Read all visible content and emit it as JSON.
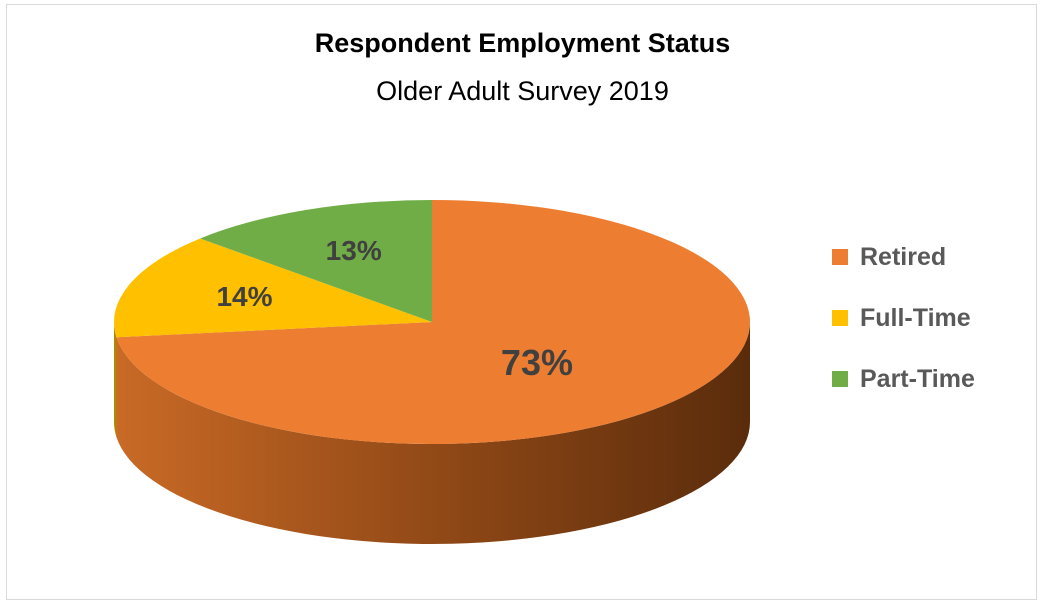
{
  "chart_data": {
    "type": "pie",
    "title": "Respondent Employment Status",
    "subtitle": "Older Adult Survey 2019",
    "categories": [
      "Retired",
      "Full-Time",
      "Part-Time"
    ],
    "values": [
      73,
      14,
      13
    ],
    "data_labels": [
      "73%",
      "14%",
      "13%"
    ],
    "colors": [
      "#ed7d31",
      "#ffc000",
      "#70ad47"
    ],
    "side_colors": [
      "#a0521c",
      "#b38600",
      "#4a7a2c"
    ],
    "label_color": "#404040",
    "legend_position": "right",
    "style": "3d"
  }
}
